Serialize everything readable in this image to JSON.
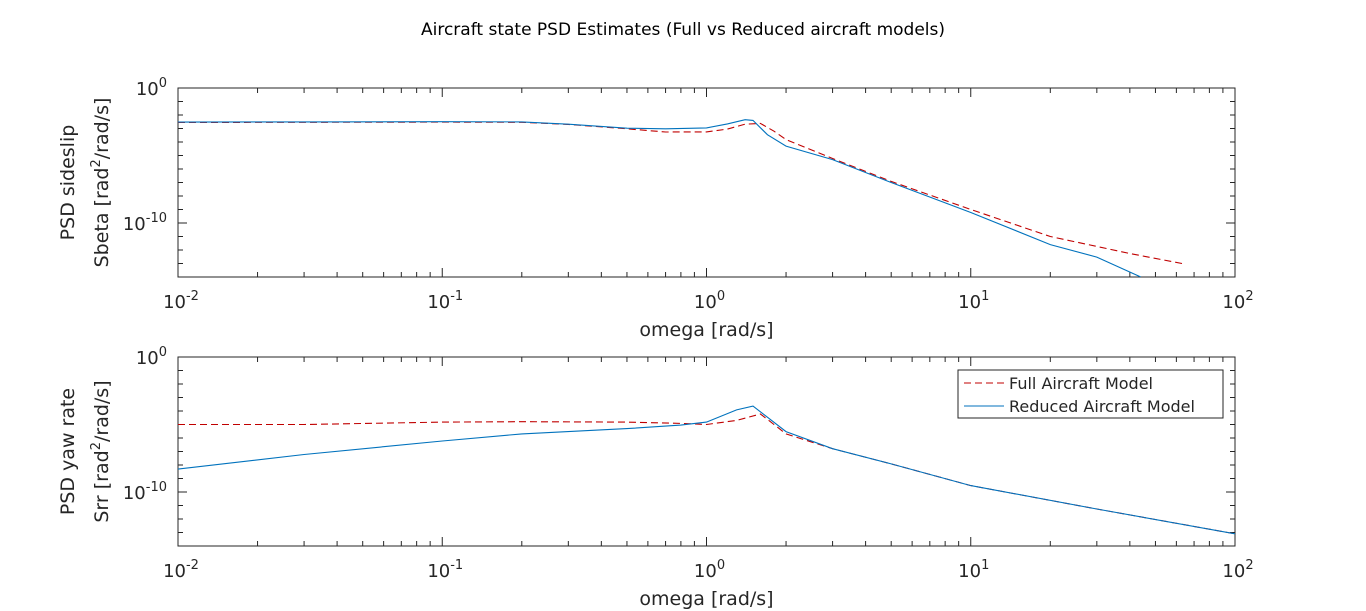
{
  "figure": {
    "title": "Aircraft state PSD Estimates (Full vs Reduced aircraft models)"
  },
  "colors": {
    "full_model": "#c00000",
    "reduced_model": "#0072bd",
    "axes": "#262626"
  },
  "chart_data": [
    {
      "type": "line",
      "xscale": "log",
      "yscale": "log",
      "xlim": [
        0.01,
        100
      ],
      "ylim": [
        1e-14,
        1
      ],
      "xticks": [
        0.01,
        0.1,
        1,
        10,
        100
      ],
      "xtick_labels": [
        "10-2",
        "10-1",
        "100",
        "101",
        "102"
      ],
      "yticks": [
        1e-10,
        1
      ],
      "ytick_labels": [
        "10-10",
        "100"
      ],
      "xlabel": "omega [rad/s]",
      "ylabel_lines": [
        "PSD sideslip",
        "Sbeta [rad2/rad/s]"
      ],
      "grid": false,
      "series": [
        {
          "name": "Full Aircraft Model",
          "style": "dashed",
          "x": [
            0.01,
            0.03,
            0.1,
            0.2,
            0.3,
            0.5,
            0.7,
            1.0,
            1.2,
            1.4,
            1.6,
            1.8,
            2.0,
            3.0,
            5.0,
            10,
            20,
            40,
            63
          ],
          "y": [
            0.0028,
            0.0029,
            0.003,
            0.0029,
            0.002,
            0.00095,
            0.00055,
            0.00056,
            0.0009,
            0.0021,
            0.0024,
            0.00063,
            0.00015,
            6e-06,
            1.2e-07,
            1e-09,
            1e-11,
            5.5e-13,
            1e-13
          ]
        },
        {
          "name": "Reduced Aircraft Model",
          "style": "solid",
          "x": [
            0.01,
            0.03,
            0.1,
            0.2,
            0.3,
            0.5,
            0.7,
            1.0,
            1.2,
            1.4,
            1.5,
            1.7,
            2.0,
            3.0,
            5.0,
            10,
            20,
            30,
            44
          ],
          "y": [
            0.003,
            0.0031,
            0.0032,
            0.0031,
            0.0021,
            0.00105,
            0.00095,
            0.0011,
            0.0022,
            0.0045,
            0.004,
            0.00035,
            5e-05,
            5e-06,
            1e-07,
            6e-10,
            2.5e-12,
            3e-13,
            1e-14
          ]
        }
      ]
    },
    {
      "type": "line",
      "xscale": "log",
      "yscale": "log",
      "xlim": [
        0.01,
        100
      ],
      "ylim": [
        1e-14,
        1
      ],
      "xticks": [
        0.01,
        0.1,
        1,
        10,
        100
      ],
      "xtick_labels": [
        "10-2",
        "10-1",
        "100",
        "101",
        "102"
      ],
      "yticks": [
        1e-10,
        1
      ],
      "ytick_labels": [
        "10-10",
        "100"
      ],
      "xlabel": "omega [rad/s]",
      "ylabel_lines": [
        "PSD yaw rate",
        "Srr [rad2/rad/s]"
      ],
      "grid": false,
      "legend": "top-right",
      "series": [
        {
          "name": "Full Aircraft Model",
          "style": "dashed",
          "x": [
            0.01,
            0.03,
            0.1,
            0.2,
            0.5,
            0.8,
            1.0,
            1.3,
            1.6,
            1.8,
            2.0,
            3.0,
            5,
            10,
            30,
            100
          ],
          "y": [
            1e-05,
            1e-05,
            1.5e-05,
            1.6e-05,
            1.5e-05,
            1.2e-05,
            1e-05,
            2e-05,
            6e-05,
            1e-05,
            2e-06,
            1.6e-07,
            1.2e-08,
            3e-10,
            5.5e-12,
            8e-14
          ]
        },
        {
          "name": "Reduced Aircraft Model",
          "style": "solid",
          "x": [
            0.01,
            0.03,
            0.1,
            0.2,
            0.5,
            0.8,
            1.0,
            1.3,
            1.5,
            1.7,
            2.0,
            3.0,
            5,
            10,
            30,
            100
          ],
          "y": [
            5e-09,
            6e-08,
            6e-07,
            2e-06,
            5e-06,
            9e-06,
            1.5e-05,
            0.00012,
            0.00023,
            3.5e-05,
            3e-06,
            1.6e-07,
            1.2e-08,
            3e-10,
            5.5e-12,
            8e-14
          ]
        }
      ]
    }
  ]
}
